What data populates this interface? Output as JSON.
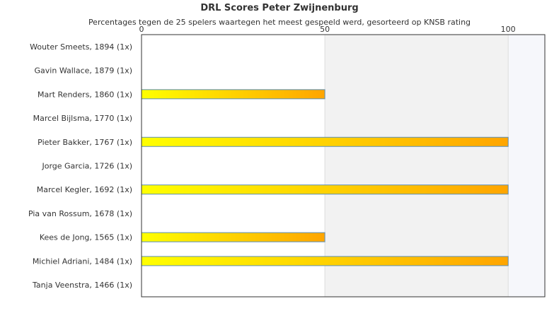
{
  "title": "DRL Scores Peter Zwijnenburg",
  "subtitle": "Percentages tegen de 25 spelers waartegen het meest gespeeld werd, gesorteerd op KNSB rating",
  "colors": {
    "bar_start": "#ffff00",
    "bar_end": "#ffa500",
    "bar_border": "#5b8fb9",
    "band_50_100": "#f2f2f2",
    "band_above_100": "#f6f7fb",
    "gridline": "#dddddd",
    "axis": "#333333"
  },
  "chart_data": {
    "type": "bar",
    "orientation": "horizontal",
    "xlim": [
      0,
      110
    ],
    "xticks": [
      0,
      50,
      100
    ],
    "xtick_position": "top",
    "categories": [
      "Wouter Smeets, 1894 (1x)",
      "Gavin Wallace, 1879 (1x)",
      "Mart Renders, 1860 (1x)",
      "Marcel Bijlsma, 1770 (1x)",
      "Pieter Bakker, 1767 (1x)",
      "Jorge Garcia, 1726 (1x)",
      "Marcel Kegler, 1692 (1x)",
      "Pia van Rossum, 1678 (1x)",
      "Kees de Jong, 1565 (1x)",
      "Michiel Adriani, 1484 (1x)",
      "Tanja Veenstra, 1466 (1x)"
    ],
    "values": [
      0,
      0,
      50,
      0,
      100,
      0,
      100,
      0,
      50,
      100,
      0
    ]
  }
}
